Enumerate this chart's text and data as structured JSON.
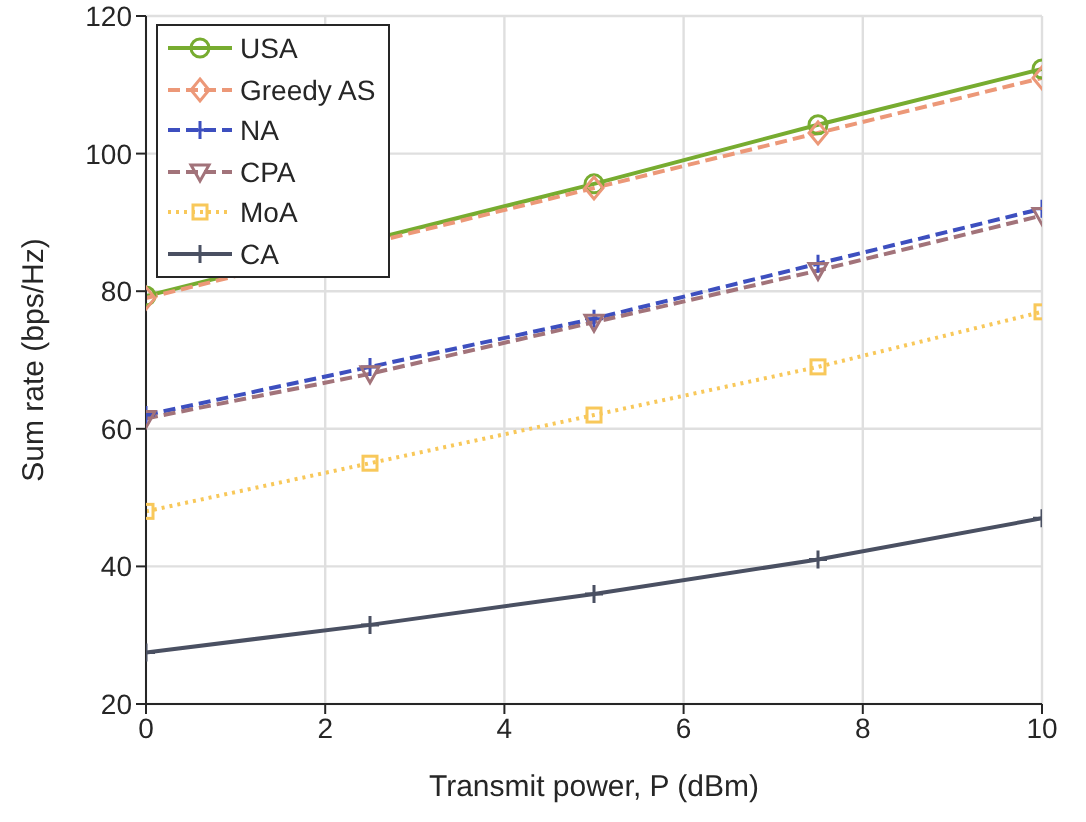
{
  "chart_data": {
    "type": "line",
    "xlabel": "Transmit power, P (dBm)",
    "ylabel": "Sum rate (bps/Hz)",
    "x": [
      0,
      2.5,
      5,
      7.5,
      10
    ],
    "xlim": [
      0,
      10
    ],
    "xticks": [
      0,
      2,
      4,
      6,
      8,
      10
    ],
    "ylim": [
      20,
      120
    ],
    "yticks": [
      20,
      40,
      60,
      80,
      100,
      120
    ],
    "grid": true,
    "legend": "top left",
    "series": [
      {
        "name": "USA",
        "color": "#77ac30",
        "marker": "circle",
        "line_style": "solid",
        "values": [
          79.3,
          null,
          95.6,
          104.2,
          112.3
        ]
      },
      {
        "name": "Greedy AS",
        "color": "#ec9878",
        "marker": "diamond",
        "line_style": "dashed",
        "values": [
          79,
          null,
          95,
          103,
          111
        ]
      },
      {
        "name": "NA",
        "color": "#3d4fbf",
        "marker": "cross",
        "line_style": "dashed",
        "values": [
          62,
          69,
          76,
          84,
          92
        ]
      },
      {
        "name": "CPA",
        "color": "#a2737a",
        "marker": "triangle",
        "line_style": "dashed",
        "values": [
          61.5,
          68,
          75.5,
          83,
          91
        ]
      },
      {
        "name": "MoA",
        "color": "#f8c85a",
        "marker": "square",
        "line_style": "dotted",
        "values": [
          48,
          55,
          62,
          69,
          77
        ]
      },
      {
        "name": "CA",
        "color": "#4a5062",
        "marker": "cross",
        "line_style": "solid",
        "values": [
          27.5,
          31.5,
          36,
          41,
          47
        ]
      }
    ]
  }
}
